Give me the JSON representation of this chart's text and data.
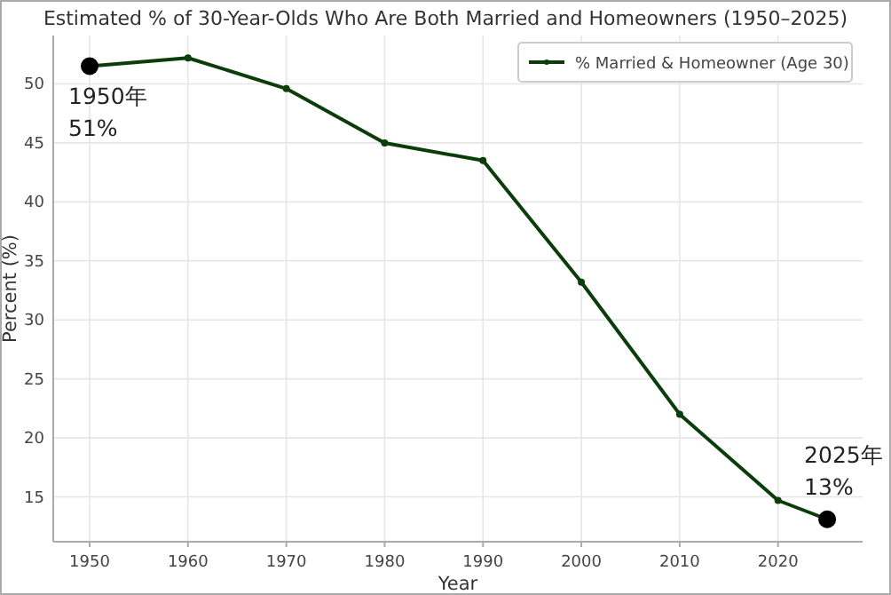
{
  "chart_data": {
    "type": "line",
    "title": "Estimated % of 30-Year-Olds Who Are Both Married and Homeowners (1950–2025)",
    "xlabel": "Year",
    "ylabel": "Percent (%)",
    "x": [
      1950,
      1960,
      1970,
      1980,
      1990,
      2000,
      2010,
      2020,
      2025
    ],
    "series": [
      {
        "name": "% Married & Homeowner (Age 30)",
        "color": "#0b3d0b",
        "values": [
          51.5,
          52.2,
          49.6,
          45.0,
          43.5,
          33.2,
          22.0,
          14.7,
          13.1
        ]
      }
    ],
    "annotations": [
      {
        "text": "1950年\n51%",
        "x": 1950,
        "y": 51.5
      },
      {
        "text": "2025年\n13%",
        "x": 2025,
        "y": 13.1
      }
    ],
    "xlim": [
      1946.3,
      2028.6
    ],
    "ylim": [
      11.2,
      54.1
    ],
    "xticks": [
      1950,
      1960,
      1970,
      1980,
      1990,
      2000,
      2010,
      2020
    ],
    "yticks": [
      15,
      20,
      25,
      30,
      35,
      40,
      45,
      50
    ],
    "grid": true,
    "legend": "top right",
    "marker": "circle",
    "line_style": "solid"
  }
}
